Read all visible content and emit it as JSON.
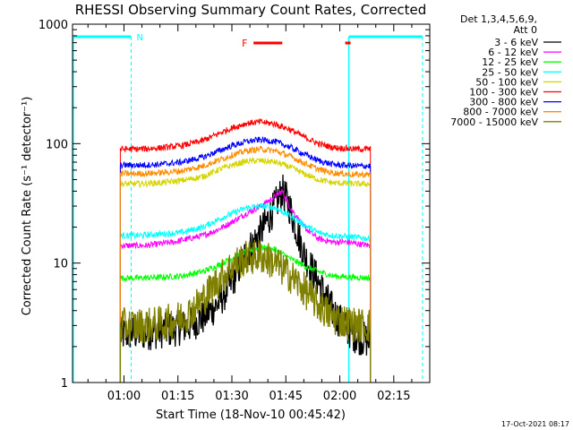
{
  "chart_data": {
    "type": "line",
    "title": "RHESSI Observing Summary Count Rates, Corrected",
    "xlabel": "Start Time (18-Nov-10 00:45:42)",
    "ylabel": "Corrected Count Rate (s⁻¹ detector⁻¹)",
    "y_scale": "log",
    "ylim": [
      1,
      1000
    ],
    "xlim": [
      "00:45:42",
      "02:25:00"
    ],
    "x_tick_labels": [
      "01:00",
      "01:15",
      "01:30",
      "01:45",
      "02:00",
      "02:15"
    ],
    "x_ticks_min": [
      60,
      75,
      90,
      105,
      120,
      135
    ],
    "y_tick_labels": [
      "1",
      "10",
      "100",
      "1000"
    ],
    "y_ticks": [
      1,
      10,
      100,
      1000
    ],
    "legend_header": [
      "Det 1,3,4,5,6,9,",
      "Att 0"
    ],
    "legend_placement": "right",
    "x_min_range": [
      45.7,
      145.0
    ],
    "data_start_min": 59.0,
    "data_end_min": 128.5,
    "series": [
      {
        "name": "3 - 6 keV",
        "color": "#000000",
        "x": [
          59,
          62,
          66,
          70,
          74,
          78,
          82,
          86,
          90,
          94,
          98,
          102,
          104,
          106,
          110,
          114,
          118,
          121,
          124,
          128.5
        ],
        "y": [
          2.5,
          2.6,
          2.6,
          2.7,
          2.8,
          3.0,
          3.5,
          4.5,
          7,
          12,
          18,
          30,
          40,
          30,
          12,
          7,
          4,
          3,
          2.5,
          2.2
        ]
      },
      {
        "name": "6 - 12 keV",
        "color": "#ff00ff",
        "x": [
          59,
          62,
          66,
          70,
          74,
          78,
          82,
          86,
          90,
          94,
          98,
          102,
          104,
          106,
          110,
          114,
          118,
          122,
          125,
          128.5
        ],
        "y": [
          14,
          14,
          14,
          14.5,
          15,
          16,
          17,
          19,
          22,
          26,
          30,
          36,
          40,
          30,
          20,
          16,
          15,
          15,
          14.5,
          14
        ]
      },
      {
        "name": "12 - 25 keV",
        "color": "#00ff00",
        "x": [
          59,
          64,
          70,
          76,
          82,
          86,
          90,
          94,
          98,
          102,
          106,
          110,
          114,
          118,
          124,
          128.5
        ],
        "y": [
          7.5,
          7.5,
          7.6,
          7.8,
          8.5,
          9.5,
          11,
          12.5,
          13.5,
          13,
          11,
          9.5,
          8.5,
          7.8,
          7.6,
          7.5
        ]
      },
      {
        "name": "25 - 50 keV",
        "color": "#00ffff",
        "x": [
          59,
          64,
          70,
          76,
          82,
          86,
          90,
          94,
          98,
          102,
          106,
          110,
          114,
          118,
          124,
          128.5
        ],
        "y": [
          17,
          17,
          17.5,
          18,
          20,
          23,
          26,
          29,
          30,
          29,
          25,
          21,
          18,
          17,
          16.5,
          16
        ]
      },
      {
        "name": "50 - 100 keV",
        "color": "#d4d400",
        "x": [
          59,
          64,
          70,
          76,
          82,
          86,
          90,
          94,
          98,
          102,
          106,
          110,
          114,
          118,
          124,
          128.5
        ],
        "y": [
          46,
          46,
          47,
          49,
          53,
          60,
          66,
          71,
          72,
          70,
          64,
          56,
          50,
          47,
          46,
          46
        ]
      },
      {
        "name": "100 - 300 keV",
        "color": "#ff0000",
        "x": [
          59,
          64,
          70,
          76,
          82,
          86,
          90,
          94,
          98,
          102,
          106,
          110,
          114,
          118,
          124,
          128.5
        ],
        "y": [
          90,
          90,
          92,
          96,
          106,
          120,
          135,
          148,
          152,
          146,
          132,
          114,
          100,
          93,
          90,
          90
        ]
      },
      {
        "name": "300 - 800 keV",
        "color": "#0000ff",
        "x": [
          59,
          64,
          70,
          76,
          82,
          86,
          90,
          94,
          98,
          102,
          106,
          110,
          114,
          118,
          124,
          128.5
        ],
        "y": [
          66,
          66,
          67,
          70,
          77,
          86,
          96,
          104,
          108,
          104,
          94,
          82,
          72,
          67,
          65,
          65
        ]
      },
      {
        "name": "800 - 7000 keV",
        "color": "#ff8c00",
        "x": [
          59,
          64,
          70,
          76,
          82,
          86,
          90,
          94,
          98,
          102,
          106,
          110,
          114,
          118,
          124,
          128.5
        ],
        "y": [
          56,
          56,
          57,
          59,
          65,
          72,
          80,
          87,
          90,
          87,
          79,
          69,
          61,
          57,
          55,
          55
        ]
      },
      {
        "name": "7000 - 15000 keV",
        "color": "#808000",
        "x": [
          59,
          62,
          66,
          70,
          74,
          78,
          82,
          86,
          90,
          94,
          98,
          102,
          106,
          110,
          114,
          118,
          122,
          125,
          128.5
        ],
        "y": [
          3,
          3,
          3,
          3.1,
          3.3,
          3.8,
          5,
          7,
          9.5,
          11,
          11.5,
          10,
          8,
          6,
          4.5,
          3.5,
          3.2,
          3,
          3
        ]
      }
    ],
    "flag_segments": [
      {
        "label": "N",
        "color": "#00ffff",
        "x_start": 46,
        "x_end": 62
      },
      {
        "label": "",
        "color": "#00ffff",
        "x_start": 122.5,
        "x_end": 143
      }
    ],
    "flare_segments": [
      {
        "label": "F",
        "color": "#ff0000",
        "x_start": 96,
        "x_end": 104
      },
      {
        "label": "",
        "color": "#ff0000",
        "x_start": 121.5,
        "x_end": 123
      }
    ],
    "night_dashed_lines_min": [
      62,
      122.5,
      143
    ],
    "saa_solid_lines_min": [
      45.9,
      122.5
    ]
  },
  "footer": {
    "timestamp": "17-Oct-2021 08:17"
  }
}
